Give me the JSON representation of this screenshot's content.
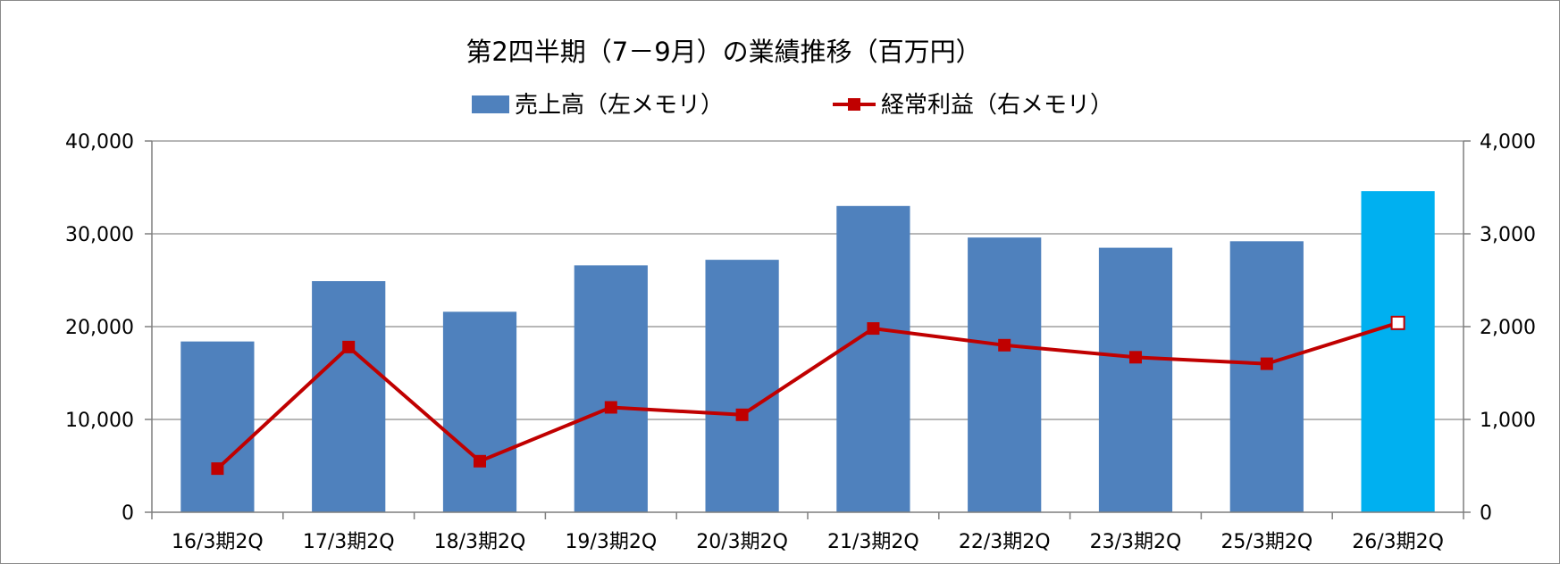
{
  "chart_data": {
    "type": "bar+line",
    "title": "第2四半期（7－9月）の業績推移（百万円）",
    "categories": [
      "16/3期2Q",
      "17/3期2Q",
      "18/3期2Q",
      "19/3期2Q",
      "20/3期2Q",
      "21/3期2Q",
      "22/3期2Q",
      "23/3期2Q",
      "25/3期2Q",
      "26/3期2Q"
    ],
    "series": [
      {
        "name": "売上高（左メモリ）",
        "type": "bar",
        "axis": "left",
        "color": "#4F81BD",
        "highlight_color": "#00B0F0",
        "highlight_index": 9,
        "values": [
          18400,
          24900,
          21600,
          26600,
          27200,
          33000,
          29600,
          28500,
          29200,
          34600
        ]
      },
      {
        "name": "経常利益（右メモリ）",
        "type": "line",
        "axis": "right",
        "color": "#C00000",
        "values": [
          470,
          1780,
          550,
          1130,
          1050,
          1980,
          1800,
          1670,
          1600,
          2040
        ]
      }
    ],
    "y_left": {
      "min": 0,
      "max": 40000,
      "ticks": [
        0,
        10000,
        20000,
        30000,
        40000
      ],
      "tick_labels": [
        "0",
        "10,000",
        "20,000",
        "30,000",
        "40,000"
      ]
    },
    "y_right": {
      "min": 0,
      "max": 4000,
      "ticks": [
        0,
        1000,
        2000,
        3000,
        4000
      ],
      "tick_labels": [
        "0",
        "1,000",
        "2,000",
        "3,000",
        "4,000"
      ]
    },
    "grid": true,
    "legend_position": "top-center"
  }
}
